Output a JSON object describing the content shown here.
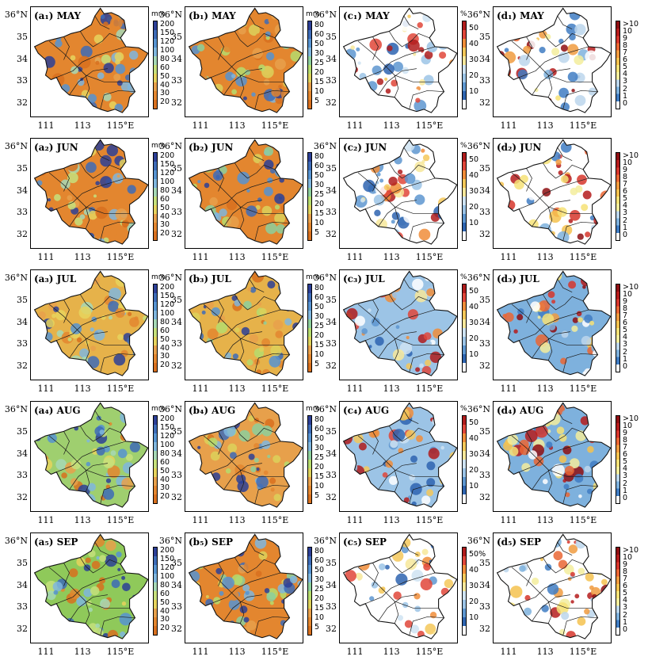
{
  "figure": {
    "rows": [
      "MAY",
      "JUN",
      "JUL",
      "AUG",
      "SEP"
    ],
    "columns": [
      {
        "letter": "a",
        "unit": "mm",
        "ticks": [
          "200",
          "150",
          "120",
          "100",
          "80",
          "60",
          "50",
          "40",
          "30",
          "20"
        ],
        "colors": [
          "#2c3f96",
          "#3d6bb7",
          "#5693d1",
          "#7fb6de",
          "#a6d8b6",
          "#c6e07c",
          "#e6d35d",
          "#e7a04b",
          "#e3862f",
          "#d8701e"
        ]
      },
      {
        "letter": "b",
        "unit": "mm",
        "ticks": [
          "80",
          "60",
          "50",
          "30",
          "25",
          "20",
          "15",
          "10",
          "5"
        ],
        "colors": [
          "#2c3f96",
          "#3d6bb7",
          "#5693d1",
          "#7fb6de",
          "#8ccf9c",
          "#b5dc6d",
          "#dcd15a",
          "#e7a04b",
          "#e3862f",
          "#d8701e"
        ]
      },
      {
        "letter": "c",
        "unit": "%",
        "ticks": [
          "50",
          "40",
          "30",
          "20",
          "10"
        ],
        "colors": [
          "#b01c1c",
          "#e0463a",
          "#f08d3a",
          "#f4c85a",
          "#f7e79a",
          "#cfe3f2",
          "#9cc4e6",
          "#5e97d0",
          "#2e64b0",
          "#ffffff"
        ]
      },
      {
        "letter": "d",
        "unit": "",
        "ticks": [
          ">10",
          "10",
          "9",
          "8",
          "7",
          "6",
          "5",
          "4",
          "3",
          "2",
          "1",
          "0"
        ],
        "colors": [
          "#8e0e12",
          "#b51c1c",
          "#d6362c",
          "#ea6634",
          "#f09b3f",
          "#f4c24f",
          "#f6e277",
          "#f3ed9c",
          "#bcd6ec",
          "#7eb1dd",
          "#3f7cc3",
          "#ffffff"
        ]
      }
    ],
    "row_labels": {
      "MAY": {
        "a": "(a₁) MAY",
        "b": "(b₁) MAY",
        "c": "(c₁) MAY",
        "d": "(d₁) MAY"
      },
      "JUN": {
        "a": "(a₂) JUN",
        "b": "(b₂) JUN",
        "c": "(c₂) JUN",
        "d": "(d₂) JUN"
      },
      "JUL": {
        "a": "(a₃) JUL",
        "b": "(b₃) JUL",
        "c": "(c₃) JUL",
        "d": "(d₃) JUL"
      },
      "AUG": {
        "a": "(a₄) AUG",
        "b": "(b₄) AUG",
        "c": "(c₄) AUG",
        "d": "(d₄) AUG"
      },
      "SEP": {
        "a": "(a₅) SEP",
        "b": "(b₅) SEP",
        "c": "(c₅) SEP",
        "d": "(d₅) SEP"
      }
    },
    "units_shown": {
      "a": [
        "mm",
        "mm",
        "mm",
        "mm",
        ""
      ],
      "b": [
        "mm",
        "",
        "mm",
        "mm",
        ""
      ],
      "c": [
        "%",
        "%",
        "%",
        "%",
        ""
      ],
      "d": [
        "",
        "",
        "",
        "",
        ""
      ]
    },
    "sep_c_ticks": [
      "50%",
      "40",
      "30",
      "20",
      "10"
    ],
    "lat_labels": [
      "36°N",
      "35",
      "34",
      "33",
      "32"
    ],
    "lat_values": [
      36,
      35,
      34,
      33,
      32
    ],
    "lon_labels": [
      "111",
      "113",
      "115°E"
    ],
    "lon_values": [
      111,
      113,
      115
    ],
    "dominant_fill": {
      "a": [
        "#e3862f",
        "#e3862f",
        "#e6b24a",
        "#9fcf6f",
        "#8fc95a"
      ],
      "b": [
        "#e3862f",
        "#e3862f",
        "#e6b24a",
        "#e7a04b",
        "#e3862f"
      ],
      "c": [
        "#ffffff",
        "#ffffff",
        "#9cc4e6",
        "#9cc4e6",
        "#ffffff"
      ],
      "d": [
        "#ffffff",
        "#ffffff",
        "#7eb1dd",
        "#7eb1dd",
        "#ffffff"
      ]
    }
  }
}
